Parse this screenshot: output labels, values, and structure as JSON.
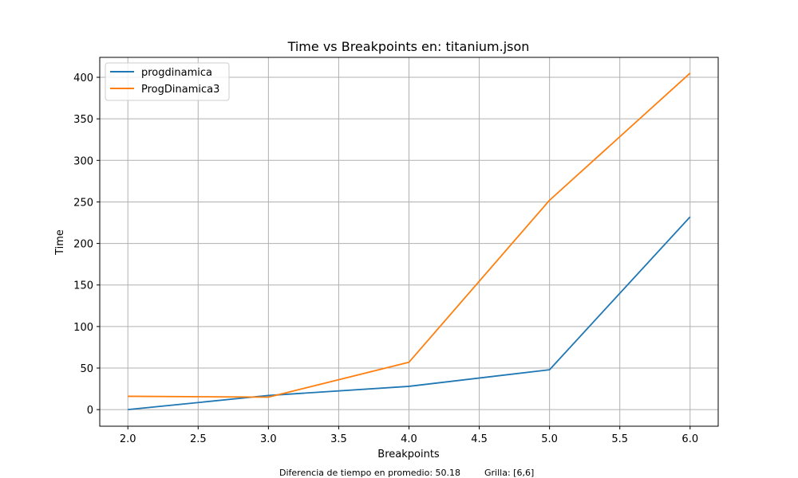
{
  "chart_data": {
    "type": "line",
    "title": "Time vs Breakpoints en: titanium.json",
    "xlabel": "Breakpoints",
    "ylabel": "Time",
    "xlim": [
      1.8,
      6.2
    ],
    "ylim": [
      -20,
      424
    ],
    "xticks": [
      2.0,
      2.5,
      3.0,
      3.5,
      4.0,
      4.5,
      5.0,
      5.5,
      6.0
    ],
    "xtick_labels": [
      "2.0",
      "2.5",
      "3.0",
      "3.5",
      "4.0",
      "4.5",
      "5.0",
      "5.5",
      "6.0"
    ],
    "yticks": [
      0,
      50,
      100,
      150,
      200,
      250,
      300,
      350,
      400
    ],
    "ytick_labels": [
      "0",
      "50",
      "100",
      "150",
      "200",
      "250",
      "300",
      "350",
      "400"
    ],
    "grid": true,
    "legend_position": "top-left",
    "x": [
      2,
      3,
      4,
      5,
      6
    ],
    "series": [
      {
        "name": "progdinamica",
        "color": "#1f77b4",
        "values": [
          0,
          17,
          28,
          48,
          232
        ]
      },
      {
        "name": "ProgDinamica3",
        "color": "#ff7f0e",
        "values": [
          16,
          15,
          57,
          252,
          405
        ]
      }
    ]
  },
  "footer": {
    "diferencia": "Diferencia de tiempo en promedio: 50.18",
    "grilla": "Grilla: [6,6]"
  }
}
